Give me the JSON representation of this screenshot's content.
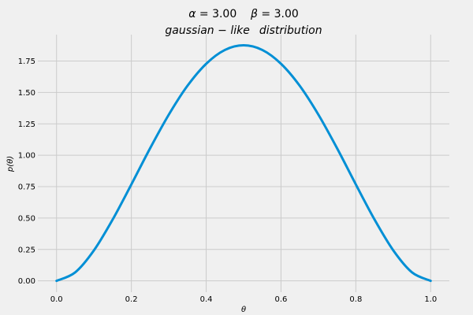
{
  "chart_data": {
    "type": "line",
    "title": {
      "line1": {
        "alpha_sym": "α",
        "alpha_text": " = 3.00    ",
        "beta_sym": "β",
        "beta_text": " = 3.00"
      },
      "line2": {
        "word1": "gaussian",
        "sep": " − ",
        "word2": "like",
        "word3": "distribution"
      }
    },
    "xlabel": "θ",
    "ylabel": "p(θ)",
    "xlim": [
      -0.05,
      1.05
    ],
    "ylim": [
      -0.09,
      1.96
    ],
    "grid": true,
    "xticks": [
      {
        "value": 0.0,
        "label": "0.0"
      },
      {
        "value": 0.2,
        "label": "0.2"
      },
      {
        "value": 0.4,
        "label": "0.4"
      },
      {
        "value": 0.6,
        "label": "0.6"
      },
      {
        "value": 0.8,
        "label": "0.8"
      },
      {
        "value": 1.0,
        "label": "1.0"
      }
    ],
    "yticks": [
      {
        "value": 0.0,
        "label": "0.00"
      },
      {
        "value": 0.25,
        "label": "0.25"
      },
      {
        "value": 0.5,
        "label": "0.50"
      },
      {
        "value": 0.75,
        "label": "0.75"
      },
      {
        "value": 1.0,
        "label": "1.00"
      },
      {
        "value": 1.25,
        "label": "1.25"
      },
      {
        "value": 1.5,
        "label": "1.50"
      },
      {
        "value": 1.75,
        "label": "1.75"
      }
    ],
    "series": [
      {
        "color": "#008fd5",
        "x": [
          0.0,
          0.05,
          0.1,
          0.15,
          0.2,
          0.25,
          0.3,
          0.35,
          0.4,
          0.45,
          0.5,
          0.55,
          0.6,
          0.65,
          0.7,
          0.75,
          0.8,
          0.85,
          0.9,
          0.95,
          1.0
        ],
        "y": [
          0.0,
          0.068,
          0.243,
          0.488,
          0.768,
          1.055,
          1.323,
          1.553,
          1.728,
          1.838,
          1.875,
          1.838,
          1.728,
          1.553,
          1.323,
          1.055,
          0.768,
          0.488,
          0.243,
          0.068,
          0.0
        ]
      }
    ]
  }
}
